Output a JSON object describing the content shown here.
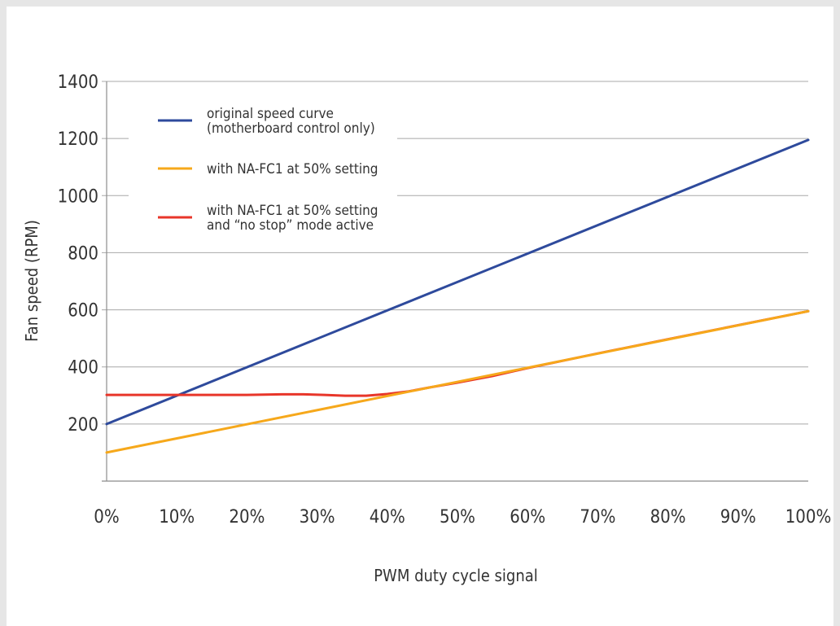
{
  "chart_data": {
    "type": "line",
    "xlabel": "PWM duty cycle signal",
    "ylabel": "Fan speed (RPM)",
    "x": [
      0,
      10,
      20,
      30,
      40,
      50,
      60,
      70,
      80,
      90,
      100
    ],
    "x_tick_labels": [
      "0%",
      "10%",
      "20%",
      "30%",
      "40%",
      "50%",
      "60%",
      "70%",
      "80%",
      "90%",
      "100%"
    ],
    "y_ticks": [
      200,
      400,
      600,
      800,
      1000,
      1200,
      1400
    ],
    "ylim": [
      0,
      1400
    ],
    "xlim": [
      0,
      100
    ],
    "grid": "horizontal",
    "legend_position": "top-left",
    "series": [
      {
        "name": "original speed curve (motherboard control only)",
        "legend_lines": [
          "original speed curve",
          "(motherboard control only)"
        ],
        "color": "#2e4a9c",
        "x": [
          0,
          100
        ],
        "y": [
          200,
          1195
        ]
      },
      {
        "name": "with NA-FC1 at 50% setting and “no stop” mode active",
        "legend_lines": [
          "with NA-FC1 at 50% setting",
          "and “no stop” mode active"
        ],
        "color": "#e8362a",
        "x": [
          0,
          5,
          10,
          15,
          20,
          25,
          28,
          31,
          34,
          37,
          40,
          43,
          46,
          50,
          55,
          60,
          70,
          80,
          90,
          100
        ],
        "y": [
          302,
          302,
          302,
          302,
          302,
          304,
          304,
          302,
          299,
          299,
          305,
          314,
          328,
          345,
          368,
          396,
          447,
          497,
          546,
          595
        ]
      },
      {
        "name": "with NA-FC1 at 50% setting",
        "legend_lines": [
          "with NA-FC1 at 50% setting"
        ],
        "color": "#f6a81b",
        "x": [
          0,
          100
        ],
        "y": [
          100,
          595
        ]
      }
    ],
    "legend_order": [
      0,
      2,
      1
    ]
  }
}
